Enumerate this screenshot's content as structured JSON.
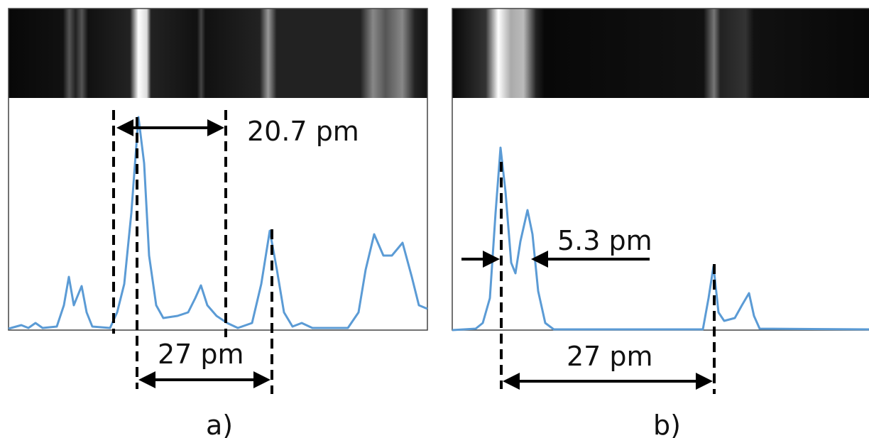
{
  "panels": [
    {
      "label": "a)",
      "annotations": [
        "20.7 pm",
        "27 pm"
      ]
    },
    {
      "label": "b)",
      "annotations": [
        "5.3 pm",
        "27 pm"
      ]
    }
  ]
}
